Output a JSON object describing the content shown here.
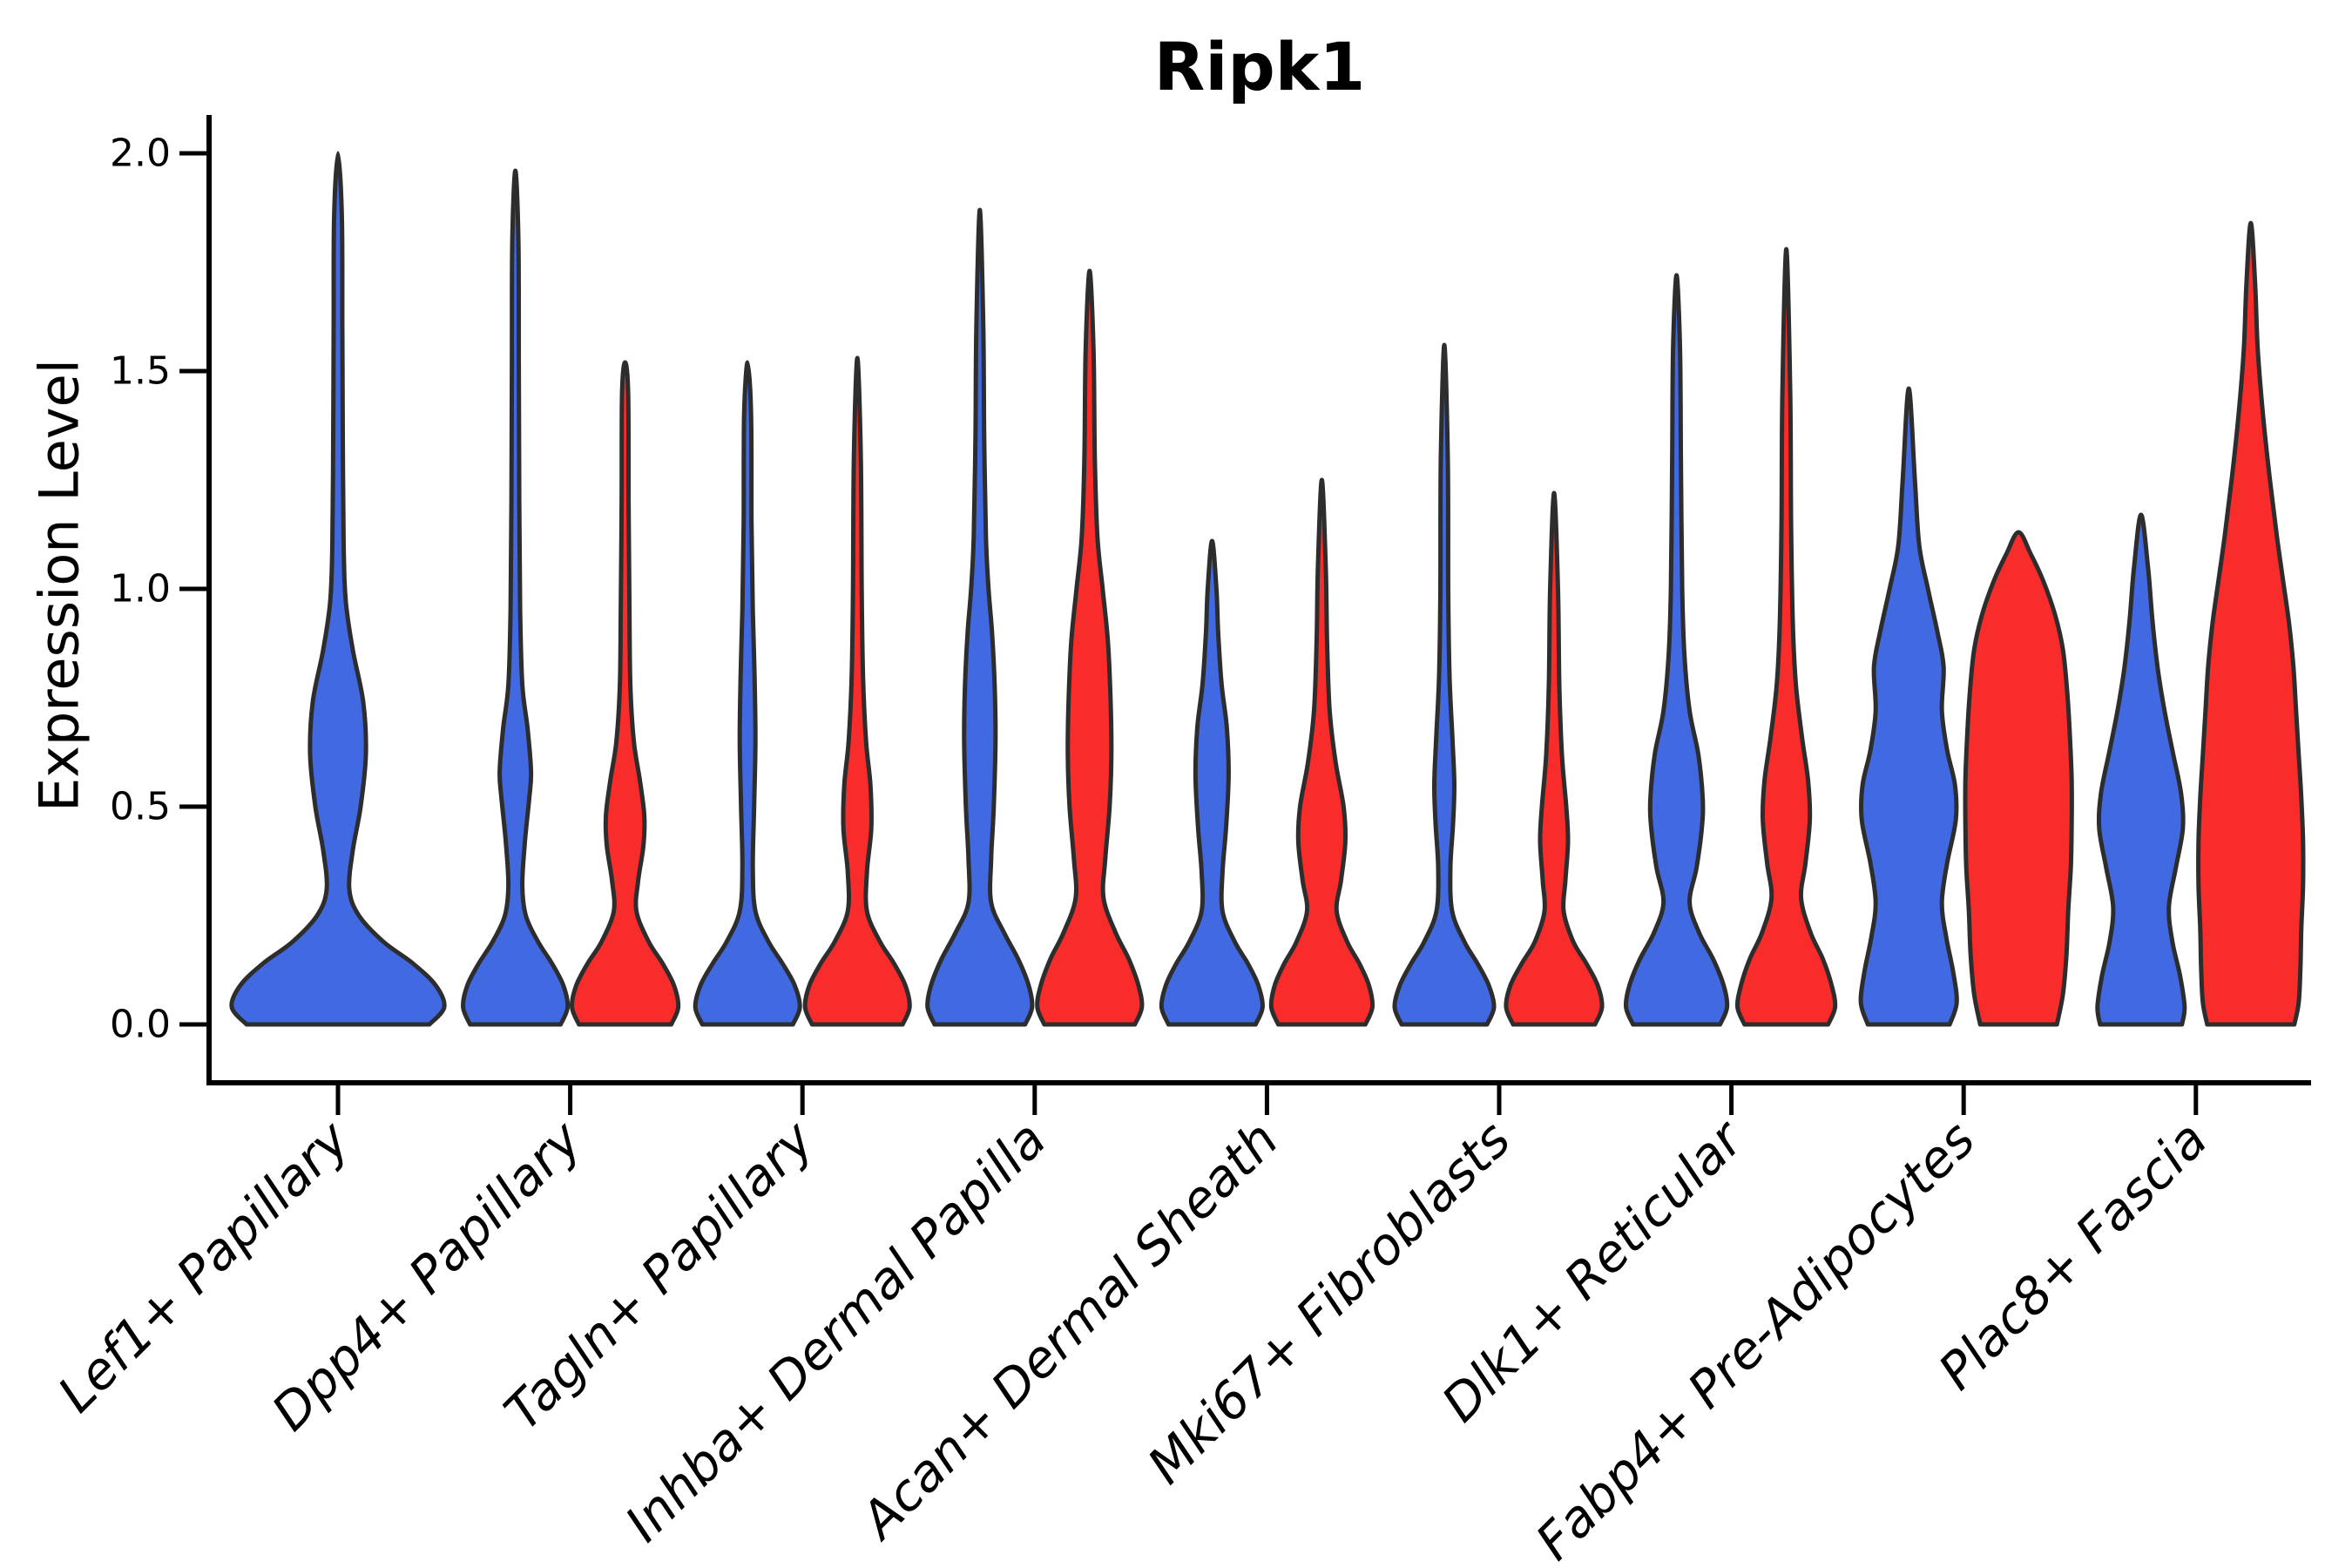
{
  "colors": {
    "blue": "#4169E1",
    "red": "#F92C2C",
    "violin_outline": "#2D2D2D",
    "axis": "#000000",
    "background": "#FFFFFF"
  },
  "chart_data": {
    "type": "violin",
    "title": "Ripk1",
    "ylabel": "Expression Level",
    "xlabel": "",
    "ylim": [
      -0.134,
      2.088
    ],
    "grid": false,
    "legend": "none",
    "yticks": [
      0.0,
      0.5,
      1.0,
      1.5,
      2.0
    ],
    "ytick_labels": [
      "0.0",
      "0.5",
      "1.0",
      "1.5",
      "2.0"
    ],
    "categories": [
      "Lef1+ Papillary",
      "Dpp4+ Papillary",
      "Tagln+ Papillary",
      "Inhba+ Dermal Papilla",
      "Acan+ Dermal Sheath",
      "Mki67+ Fibroblasts",
      "Dlk1+ Reticular",
      "Fabp4+ Pre-Adipocytes",
      "Plac8+ Fascia"
    ],
    "series": [
      {
        "name": "blue",
        "color": "#4169E1",
        "max_values": [
          2.0,
          1.96,
          1.52,
          1.87,
          1.11,
          1.56,
          1.72,
          1.46,
          1.17
        ]
      },
      {
        "name": "red",
        "color": "#F92C2C",
        "max_values": [
          null,
          1.52,
          1.53,
          1.73,
          1.25,
          1.22,
          1.78,
          1.13,
          1.84
        ]
      }
    ],
    "violins": [
      {
        "category": 0,
        "series": "blue",
        "offset": 0,
        "max": 2.0,
        "profile": [
          [
            0,
            105
          ],
          [
            0.04,
            122
          ],
          [
            0.09,
            112
          ],
          [
            0.14,
            86
          ],
          [
            0.19,
            52
          ],
          [
            0.25,
            24
          ],
          [
            0.31,
            13
          ],
          [
            0.4,
            17
          ],
          [
            0.5,
            26
          ],
          [
            0.62,
            32
          ],
          [
            0.74,
            29
          ],
          [
            0.86,
            17
          ],
          [
            0.97,
            9
          ],
          [
            1.1,
            6.5
          ],
          [
            1.35,
            5.5
          ],
          [
            1.6,
            5
          ],
          [
            1.85,
            4.5
          ],
          [
            2.0,
            0
          ]
        ]
      },
      {
        "category": 1,
        "series": "blue",
        "offset": -63,
        "max": 1.96,
        "profile": [
          [
            0,
            52
          ],
          [
            0.04,
            60
          ],
          [
            0.09,
            55
          ],
          [
            0.14,
            42
          ],
          [
            0.19,
            26
          ],
          [
            0.25,
            12
          ],
          [
            0.32,
            8
          ],
          [
            0.42,
            11
          ],
          [
            0.52,
            16
          ],
          [
            0.58,
            18
          ],
          [
            0.68,
            14
          ],
          [
            0.78,
            8
          ],
          [
            0.95,
            5.5
          ],
          [
            1.2,
            4.5
          ],
          [
            1.5,
            4
          ],
          [
            1.8,
            3.5
          ],
          [
            1.96,
            0
          ]
        ]
      },
      {
        "category": 1,
        "series": "red",
        "offset": 63,
        "max": 1.52,
        "profile": [
          [
            0,
            53
          ],
          [
            0.04,
            61
          ],
          [
            0.09,
            56
          ],
          [
            0.14,
            43
          ],
          [
            0.19,
            27
          ],
          [
            0.26,
            13
          ],
          [
            0.33,
            15
          ],
          [
            0.41,
            21
          ],
          [
            0.48,
            22
          ],
          [
            0.56,
            17
          ],
          [
            0.65,
            10
          ],
          [
            0.78,
            6
          ],
          [
            0.95,
            5
          ],
          [
            1.2,
            4
          ],
          [
            1.45,
            3.5
          ],
          [
            1.52,
            0
          ]
        ]
      },
      {
        "category": 2,
        "series": "blue",
        "offset": -63,
        "max": 1.52,
        "profile": [
          [
            0,
            52
          ],
          [
            0.04,
            60
          ],
          [
            0.09,
            54
          ],
          [
            0.14,
            40
          ],
          [
            0.19,
            24
          ],
          [
            0.26,
            9
          ],
          [
            0.36,
            6
          ],
          [
            0.5,
            7.5
          ],
          [
            0.65,
            9
          ],
          [
            0.8,
            8
          ],
          [
            0.95,
            6
          ],
          [
            1.15,
            4.5
          ],
          [
            1.4,
            4
          ],
          [
            1.52,
            0
          ]
        ]
      },
      {
        "category": 2,
        "series": "red",
        "offset": 63,
        "max": 1.53,
        "profile": [
          [
            0,
            52
          ],
          [
            0.04,
            60
          ],
          [
            0.09,
            55
          ],
          [
            0.14,
            42
          ],
          [
            0.19,
            26
          ],
          [
            0.26,
            11
          ],
          [
            0.35,
            11
          ],
          [
            0.45,
            16
          ],
          [
            0.55,
            15
          ],
          [
            0.65,
            10
          ],
          [
            0.8,
            6.5
          ],
          [
            1.0,
            5
          ],
          [
            1.3,
            4
          ],
          [
            1.53,
            0
          ]
        ]
      },
      {
        "category": 3,
        "series": "blue",
        "offset": -63,
        "max": 1.87,
        "profile": [
          [
            0,
            52
          ],
          [
            0.04,
            60
          ],
          [
            0.09,
            56
          ],
          [
            0.15,
            44
          ],
          [
            0.21,
            28
          ],
          [
            0.28,
            13
          ],
          [
            0.38,
            13
          ],
          [
            0.5,
            16
          ],
          [
            0.65,
            18
          ],
          [
            0.78,
            17
          ],
          [
            0.9,
            14
          ],
          [
            1.0,
            10
          ],
          [
            1.12,
            7
          ],
          [
            1.35,
            5
          ],
          [
            1.6,
            4
          ],
          [
            1.87,
            0
          ]
        ]
      },
      {
        "category": 3,
        "series": "red",
        "offset": 63,
        "max": 1.73,
        "profile": [
          [
            0,
            52
          ],
          [
            0.04,
            60
          ],
          [
            0.09,
            56
          ],
          [
            0.15,
            45
          ],
          [
            0.21,
            30
          ],
          [
            0.29,
            16
          ],
          [
            0.38,
            18
          ],
          [
            0.5,
            23
          ],
          [
            0.62,
            25
          ],
          [
            0.75,
            24
          ],
          [
            0.88,
            21
          ],
          [
            1.0,
            15
          ],
          [
            1.12,
            9
          ],
          [
            1.3,
            6
          ],
          [
            1.55,
            4.5
          ],
          [
            1.73,
            0
          ]
        ]
      },
      {
        "category": 4,
        "series": "blue",
        "offset": -63,
        "max": 1.11,
        "profile": [
          [
            0,
            50
          ],
          [
            0.04,
            58
          ],
          [
            0.09,
            53
          ],
          [
            0.14,
            41
          ],
          [
            0.19,
            26
          ],
          [
            0.26,
            12
          ],
          [
            0.35,
            12
          ],
          [
            0.45,
            16
          ],
          [
            0.57,
            19
          ],
          [
            0.68,
            17
          ],
          [
            0.78,
            11
          ],
          [
            0.9,
            7
          ],
          [
            1.0,
            5
          ],
          [
            1.11,
            0
          ]
        ]
      },
      {
        "category": 4,
        "series": "red",
        "offset": 63,
        "max": 1.25,
        "profile": [
          [
            0,
            50
          ],
          [
            0.04,
            58
          ],
          [
            0.09,
            54
          ],
          [
            0.14,
            43
          ],
          [
            0.19,
            29
          ],
          [
            0.26,
            17
          ],
          [
            0.33,
            22
          ],
          [
            0.42,
            27
          ],
          [
            0.5,
            25
          ],
          [
            0.6,
            16
          ],
          [
            0.72,
            9
          ],
          [
            0.88,
            6
          ],
          [
            1.05,
            4.5
          ],
          [
            1.25,
            0
          ]
        ]
      },
      {
        "category": 5,
        "series": "blue",
        "offset": -63,
        "max": 1.56,
        "profile": [
          [
            0,
            49
          ],
          [
            0.04,
            57
          ],
          [
            0.09,
            51
          ],
          [
            0.14,
            38
          ],
          [
            0.19,
            23
          ],
          [
            0.26,
            9
          ],
          [
            0.36,
            7
          ],
          [
            0.46,
            10
          ],
          [
            0.55,
            11.5
          ],
          [
            0.65,
            9.5
          ],
          [
            0.8,
            6
          ],
          [
            1.0,
            4.5
          ],
          [
            1.3,
            4
          ],
          [
            1.56,
            0
          ]
        ]
      },
      {
        "category": 5,
        "series": "red",
        "offset": 63,
        "max": 1.22,
        "profile": [
          [
            0,
            47
          ],
          [
            0.04,
            55
          ],
          [
            0.09,
            50
          ],
          [
            0.14,
            37
          ],
          [
            0.19,
            22
          ],
          [
            0.26,
            11
          ],
          [
            0.33,
            13
          ],
          [
            0.42,
            16
          ],
          [
            0.5,
            14
          ],
          [
            0.62,
            9
          ],
          [
            0.78,
            6
          ],
          [
            1.0,
            4.5
          ],
          [
            1.22,
            0
          ]
        ]
      },
      {
        "category": 6,
        "series": "blue",
        "offset": -63,
        "max": 1.72,
        "profile": [
          [
            0,
            50
          ],
          [
            0.04,
            58
          ],
          [
            0.09,
            54
          ],
          [
            0.15,
            42
          ],
          [
            0.21,
            26
          ],
          [
            0.28,
            15
          ],
          [
            0.36,
            23
          ],
          [
            0.45,
            29
          ],
          [
            0.52,
            30
          ],
          [
            0.62,
            25
          ],
          [
            0.72,
            15
          ],
          [
            0.85,
            9
          ],
          [
            1.0,
            6.5
          ],
          [
            1.3,
            5
          ],
          [
            1.55,
            4
          ],
          [
            1.72,
            0
          ]
        ]
      },
      {
        "category": 6,
        "series": "red",
        "offset": 63,
        "max": 1.78,
        "profile": [
          [
            0,
            48
          ],
          [
            0.04,
            56
          ],
          [
            0.09,
            52
          ],
          [
            0.15,
            42
          ],
          [
            0.21,
            28
          ],
          [
            0.29,
            17
          ],
          [
            0.37,
            22
          ],
          [
            0.47,
            27
          ],
          [
            0.56,
            25
          ],
          [
            0.66,
            18
          ],
          [
            0.78,
            11
          ],
          [
            0.92,
            7.5
          ],
          [
            1.15,
            5.5
          ],
          [
            1.45,
            4.5
          ],
          [
            1.78,
            0
          ]
        ]
      },
      {
        "category": 7,
        "series": "blue",
        "offset": -63,
        "max": 1.46,
        "profile": [
          [
            0,
            47
          ],
          [
            0.05,
            55
          ],
          [
            0.12,
            51
          ],
          [
            0.2,
            43
          ],
          [
            0.28,
            38
          ],
          [
            0.37,
            44
          ],
          [
            0.47,
            54
          ],
          [
            0.55,
            53
          ],
          [
            0.63,
            44
          ],
          [
            0.72,
            38
          ],
          [
            0.82,
            40
          ],
          [
            0.9,
            33
          ],
          [
            1.0,
            22
          ],
          [
            1.1,
            12
          ],
          [
            1.25,
            7
          ],
          [
            1.46,
            0
          ]
        ]
      },
      {
        "category": 7,
        "series": "red",
        "offset": 63,
        "max": 1.13,
        "profile": [
          [
            0,
            44
          ],
          [
            0.07,
            51
          ],
          [
            0.16,
            55
          ],
          [
            0.26,
            57
          ],
          [
            0.36,
            60
          ],
          [
            0.46,
            61
          ],
          [
            0.56,
            61
          ],
          [
            0.66,
            59
          ],
          [
            0.76,
            56
          ],
          [
            0.86,
            51
          ],
          [
            0.94,
            42
          ],
          [
            1.02,
            28
          ],
          [
            1.08,
            14
          ],
          [
            1.13,
            0
          ]
        ]
      },
      {
        "category": 8,
        "series": "blue",
        "offset": -63,
        "max": 1.17,
        "profile": [
          [
            0,
            47
          ],
          [
            0.04,
            50
          ],
          [
            0.11,
            45
          ],
          [
            0.19,
            36
          ],
          [
            0.27,
            32
          ],
          [
            0.36,
            40
          ],
          [
            0.45,
            48
          ],
          [
            0.53,
            46
          ],
          [
            0.62,
            37
          ],
          [
            0.72,
            27
          ],
          [
            0.82,
            19
          ],
          [
            0.93,
            13
          ],
          [
            1.05,
            8
          ],
          [
            1.17,
            0
          ]
        ]
      },
      {
        "category": 8,
        "series": "red",
        "offset": 63,
        "max": 1.84,
        "profile": [
          [
            0,
            50
          ],
          [
            0.05,
            55
          ],
          [
            0.13,
            57
          ],
          [
            0.22,
            58
          ],
          [
            0.32,
            60
          ],
          [
            0.42,
            60
          ],
          [
            0.52,
            58
          ],
          [
            0.62,
            55
          ],
          [
            0.72,
            52
          ],
          [
            0.82,
            49
          ],
          [
            0.92,
            44
          ],
          [
            1.02,
            37
          ],
          [
            1.12,
            30
          ],
          [
            1.25,
            22
          ],
          [
            1.4,
            14
          ],
          [
            1.55,
            8
          ],
          [
            1.7,
            5
          ],
          [
            1.84,
            0
          ]
        ]
      }
    ]
  }
}
